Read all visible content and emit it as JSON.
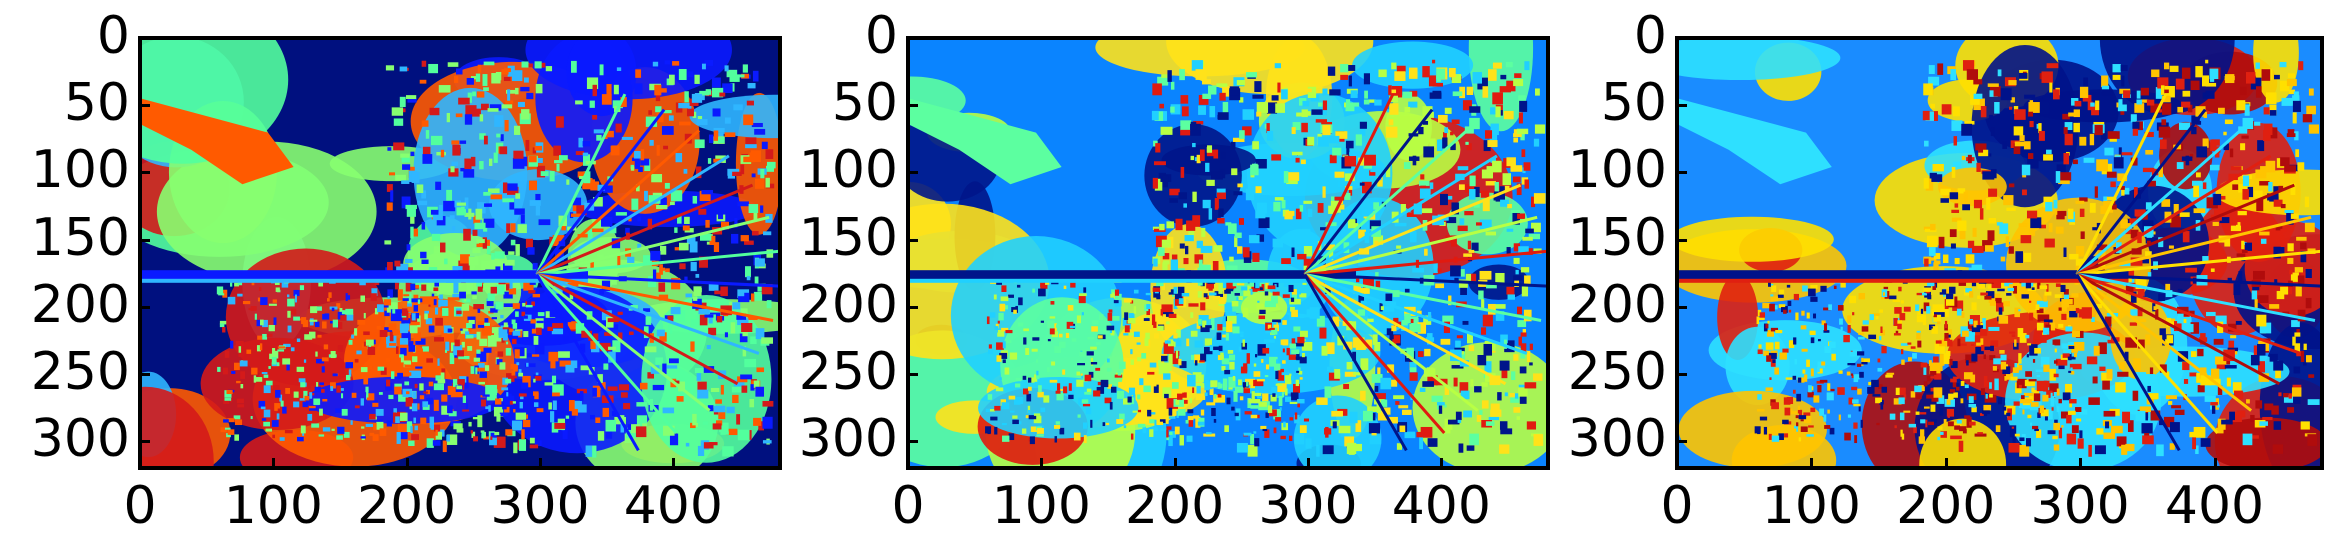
{
  "figure": {
    "panels": [
      {
        "id": "panel-1",
        "y_ticks": [
          "0",
          "50",
          "100",
          "150",
          "200",
          "250",
          "300"
        ],
        "x_ticks": [
          "0",
          "100",
          "200",
          "300",
          "400"
        ],
        "palette": {
          "bg": "#00107f",
          "c2": "#52ff9d",
          "c3": "#0a1aff",
          "c4": "#ff5a00",
          "c5": "#2fb6ff",
          "c6": "#d41a1a",
          "c7": "#87ff70"
        }
      },
      {
        "id": "panel-2",
        "y_ticks": [
          "0",
          "50",
          "100",
          "150",
          "200",
          "250",
          "300"
        ],
        "x_ticks": [
          "0",
          "100",
          "200",
          "300",
          "400"
        ],
        "palette": {
          "bg": "#0a84ff",
          "c2": "#e01a10",
          "c3": "#00158a",
          "c4": "#5cffa0",
          "c5": "#20d0ff",
          "c6": "#ffe21a",
          "c7": "#b8ff44"
        }
      },
      {
        "id": "panel-3",
        "y_ticks": [
          "0",
          "50",
          "100",
          "150",
          "200",
          "250",
          "300"
        ],
        "x_ticks": [
          "0",
          "100",
          "200",
          "300",
          "400"
        ],
        "palette": {
          "bg": "#1a8cff",
          "c2": "#ffe000",
          "c3": "#00128a",
          "c4": "#2ee0ff",
          "c5": "#e02010",
          "c6": "#b00c0c",
          "c7": "#ffc400"
        }
      }
    ]
  }
}
